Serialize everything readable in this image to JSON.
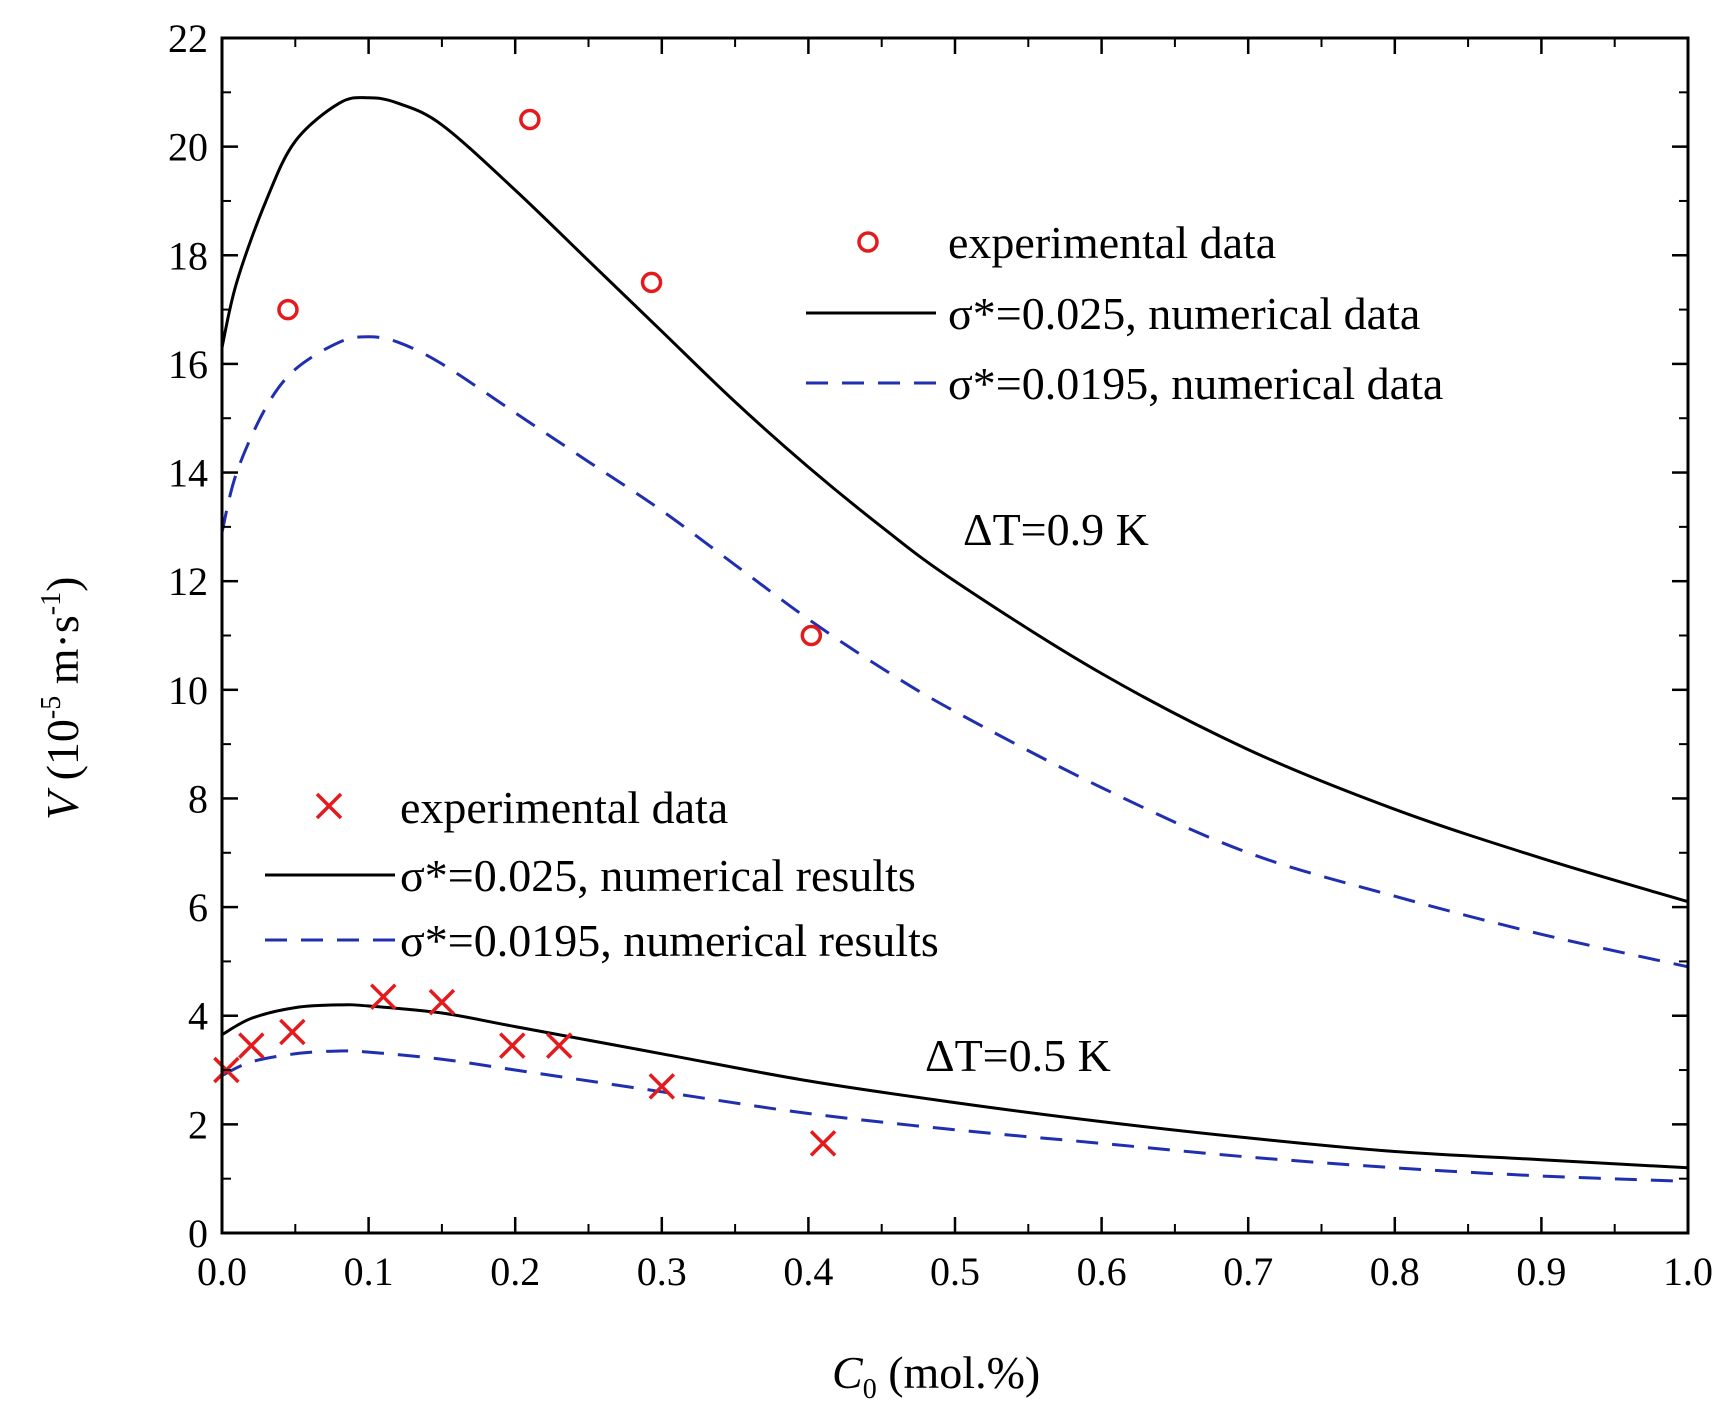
{
  "chart_data": {
    "type": "line",
    "xlabel": {
      "main": "C",
      "sub": "0",
      "rest": " (mol.%)"
    },
    "ylabel": {
      "main": "V",
      "pre": " (10",
      "exp1": "-5",
      "mid": " m·s",
      "exp2": "-1",
      "post": ")"
    },
    "xlim": [
      0,
      1.0
    ],
    "ylim": [
      0,
      22
    ],
    "xticks": [
      0.0,
      0.1,
      0.2,
      0.3,
      0.4,
      0.5,
      0.6,
      0.7,
      0.8,
      0.9,
      1.0
    ],
    "xtick_labels": [
      "0.0",
      "0.1",
      "0.2",
      "0.3",
      "0.4",
      "0.5",
      "0.6",
      "0.7",
      "0.8",
      "0.9",
      "1.0"
    ],
    "yticks": [
      0,
      2,
      4,
      6,
      8,
      10,
      12,
      14,
      16,
      18,
      20,
      22
    ],
    "ytick_labels": [
      "0",
      "2",
      "4",
      "6",
      "8",
      "10",
      "12",
      "14",
      "16",
      "18",
      "20",
      "22"
    ],
    "grid": false,
    "annotations": [
      {
        "text": "ΔT=0.9 K",
        "x": 0.51,
        "y": 13.0
      },
      {
        "text": "ΔT=0.5 K",
        "x": 0.48,
        "y": 3.35
      }
    ],
    "legends": [
      {
        "group": "dT09",
        "entries": [
          {
            "label": "experimental data",
            "marker": "circle"
          },
          {
            "label": "σ*=0.025, numerical data",
            "style": "solid"
          },
          {
            "label": "σ*=0.0195, numerical data",
            "style": "dashed"
          }
        ]
      },
      {
        "group": "dT05",
        "entries": [
          {
            "label": "experimental data",
            "marker": "cross"
          },
          {
            "label": "σ*=0.025, numerical results",
            "style": "solid"
          },
          {
            "label": "σ*=0.0195, numerical results",
            "style": "dashed"
          }
        ]
      }
    ],
    "series": [
      {
        "name": "ΔT=0.9 K, σ*=0.025",
        "style": "solid",
        "color": "#000000",
        "x": [
          0.0,
          0.01,
          0.03,
          0.05,
          0.08,
          0.1,
          0.12,
          0.15,
          0.2,
          0.25,
          0.3,
          0.35,
          0.4,
          0.45,
          0.5,
          0.6,
          0.7,
          0.8,
          0.9,
          1.0
        ],
        "y": [
          16.3,
          17.5,
          19.0,
          20.1,
          20.8,
          20.9,
          20.8,
          20.4,
          19.2,
          17.9,
          16.6,
          15.3,
          14.1,
          13.0,
          12.0,
          10.3,
          8.9,
          7.8,
          6.9,
          6.1
        ]
      },
      {
        "name": "ΔT=0.9 K, σ*=0.0195",
        "style": "dashed",
        "color": "#1f2fb0",
        "x": [
          0.0,
          0.01,
          0.03,
          0.05,
          0.08,
          0.1,
          0.12,
          0.15,
          0.2,
          0.25,
          0.3,
          0.35,
          0.4,
          0.45,
          0.5,
          0.6,
          0.7,
          0.8,
          0.9,
          1.0
        ],
        "y": [
          12.9,
          14.0,
          15.2,
          15.9,
          16.4,
          16.5,
          16.4,
          16.0,
          15.1,
          14.2,
          13.3,
          12.3,
          11.3,
          10.4,
          9.6,
          8.2,
          7.0,
          6.2,
          5.5,
          4.9
        ]
      },
      {
        "name": "ΔT=0.5 K, σ*=0.025",
        "style": "solid",
        "color": "#000000",
        "x": [
          0.0,
          0.02,
          0.05,
          0.08,
          0.1,
          0.15,
          0.2,
          0.3,
          0.4,
          0.5,
          0.6,
          0.7,
          0.8,
          0.9,
          1.0
        ],
        "y": [
          3.65,
          3.95,
          4.15,
          4.2,
          4.18,
          4.05,
          3.8,
          3.3,
          2.8,
          2.4,
          2.05,
          1.75,
          1.5,
          1.35,
          1.2
        ]
      },
      {
        "name": "ΔT=0.5 K, σ*=0.0195",
        "style": "dashed",
        "color": "#1f2fb0",
        "x": [
          0.0,
          0.02,
          0.05,
          0.08,
          0.1,
          0.15,
          0.2,
          0.3,
          0.4,
          0.5,
          0.6,
          0.7,
          0.8,
          0.9,
          1.0
        ],
        "y": [
          2.9,
          3.15,
          3.3,
          3.35,
          3.33,
          3.2,
          3.0,
          2.6,
          2.2,
          1.9,
          1.65,
          1.4,
          1.2,
          1.05,
          0.95
        ]
      },
      {
        "name": "ΔT=0.9 K, experimental data",
        "marker": "circle",
        "color": "#e41a1c",
        "x": [
          0.045,
          0.21,
          0.293,
          0.402
        ],
        "y": [
          17.0,
          20.5,
          17.5,
          11.0
        ]
      },
      {
        "name": "ΔT=0.5 K, experimental data",
        "marker": "cross",
        "color": "#e41a1c",
        "x": [
          0.003,
          0.02,
          0.048,
          0.11,
          0.15,
          0.198,
          0.23,
          0.3,
          0.41
        ],
        "y": [
          3.0,
          3.45,
          3.7,
          4.35,
          4.25,
          3.45,
          3.45,
          2.7,
          1.65
        ]
      }
    ]
  }
}
